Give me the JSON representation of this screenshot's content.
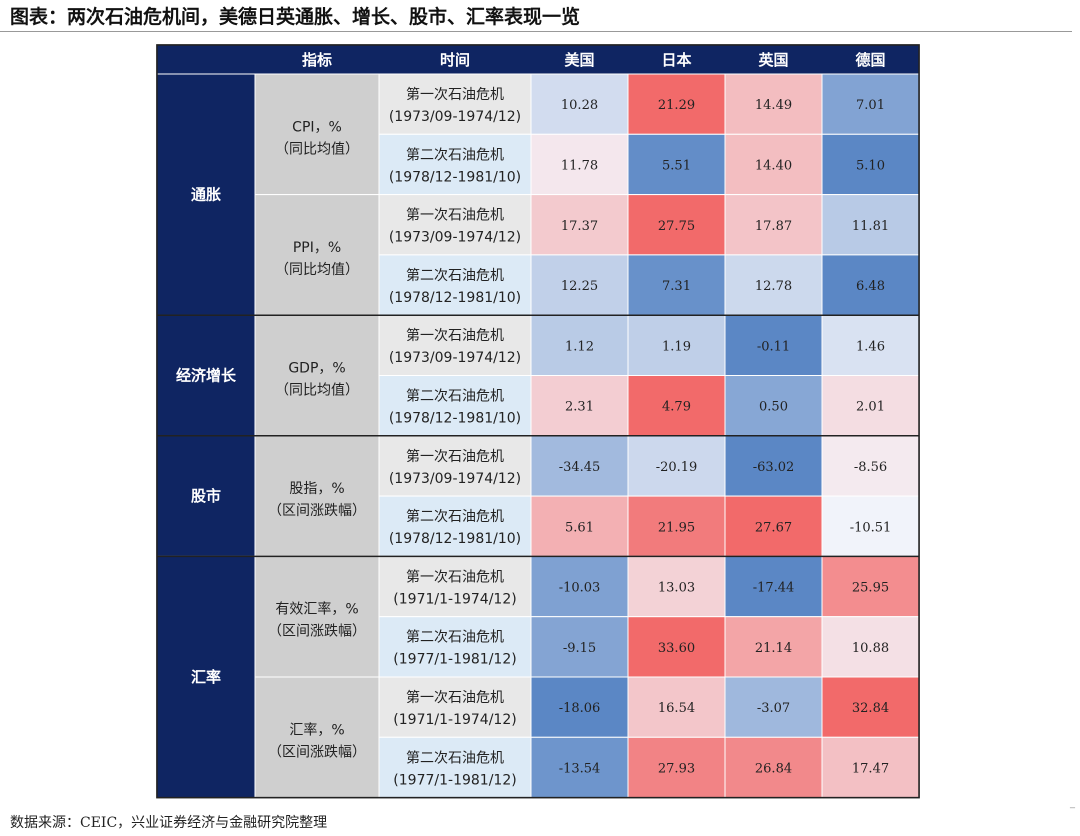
{
  "title": "图表：两次石油危机间，美德日英通胀、增长、股市、汇率表现一览",
  "source": "数据来源：CEIC，兴业证券经济与金融研究院整理",
  "edge_mark": "_",
  "colors": {
    "header_bg": "#0f2562",
    "category_bg": "#0f2562",
    "indicator_bg": "#cfcfcf",
    "period_first_bg": "#e8e8e8",
    "period_second_bg": "#dceaf6",
    "neg": "#5b87c5",
    "mid": "#f4f5fb",
    "pos": "#f26a6a"
  },
  "chart_data": {
    "type": "table",
    "headers": [
      "指标",
      "时间",
      "美国",
      "日本",
      "英国",
      "德国"
    ],
    "countries": [
      "美国",
      "日本",
      "英国",
      "德国"
    ],
    "categories": [
      {
        "label": "通胀",
        "rows": 4
      },
      {
        "label": "经济增长",
        "rows": 2
      },
      {
        "label": "股市",
        "rows": 2
      },
      {
        "label": "汇率",
        "rows": 4
      }
    ],
    "indicators": [
      {
        "line1": "CPI，%",
        "line2": "（同比均值）",
        "rows": 2
      },
      {
        "line1": "PPI，%",
        "line2": "（同比均值）",
        "rows": 2
      },
      {
        "line1": "GDP，%",
        "line2": "（同比均值）",
        "rows": 2
      },
      {
        "line1": "股指，%",
        "line2": "（区间涨跌幅）",
        "rows": 2
      },
      {
        "line1": "有效汇率，%",
        "line2": "（区间涨跌幅）",
        "rows": 2
      },
      {
        "line1": "汇率，%",
        "line2": "（区间涨跌幅）",
        "rows": 2
      }
    ],
    "rows": [
      {
        "period": "第一次石油危机",
        "range": "(1973/09-1974/12)",
        "values": [
          10.28,
          21.29,
          14.49,
          7.01
        ]
      },
      {
        "period": "第二次石油危机",
        "range": "(1978/12-1981/10)",
        "values": [
          11.78,
          5.51,
          14.4,
          5.1
        ]
      },
      {
        "period": "第一次石油危机",
        "range": "(1973/09-1974/12)",
        "values": [
          17.37,
          27.75,
          17.87,
          11.81
        ]
      },
      {
        "period": "第二次石油危机",
        "range": "(1978/12-1981/10)",
        "values": [
          12.25,
          7.31,
          12.78,
          6.48
        ]
      },
      {
        "period": "第一次石油危机",
        "range": "(1973/09-1974/12)",
        "values": [
          1.12,
          1.19,
          -0.11,
          1.46
        ]
      },
      {
        "period": "第二次石油危机",
        "range": "(1978/12-1981/10)",
        "values": [
          2.31,
          4.79,
          0.5,
          2.01
        ]
      },
      {
        "period": "第一次石油危机",
        "range": "(1973/09-1974/12)",
        "values": [
          -34.45,
          -20.19,
          -63.02,
          -8.56
        ]
      },
      {
        "period": "第二次石油危机",
        "range": "(1978/12-1981/10)",
        "values": [
          5.61,
          21.95,
          27.67,
          -10.51
        ]
      },
      {
        "period": "第一次石油危机",
        "range": "(1971/1-1974/12)",
        "values": [
          -10.03,
          13.03,
          -17.44,
          25.95
        ]
      },
      {
        "period": "第二次石油危机",
        "range": "(1977/1-1981/12)",
        "values": [
          -9.15,
          33.6,
          21.14,
          10.88
        ]
      },
      {
        "period": "第一次石油危机",
        "range": "(1971/1-1974/12)",
        "values": [
          -18.06,
          16.54,
          -3.07,
          32.84
        ]
      },
      {
        "period": "第二次石油危机",
        "range": "(1977/1-1981/12)",
        "values": [
          -13.54,
          27.93,
          26.84,
          17.47
        ]
      }
    ]
  }
}
